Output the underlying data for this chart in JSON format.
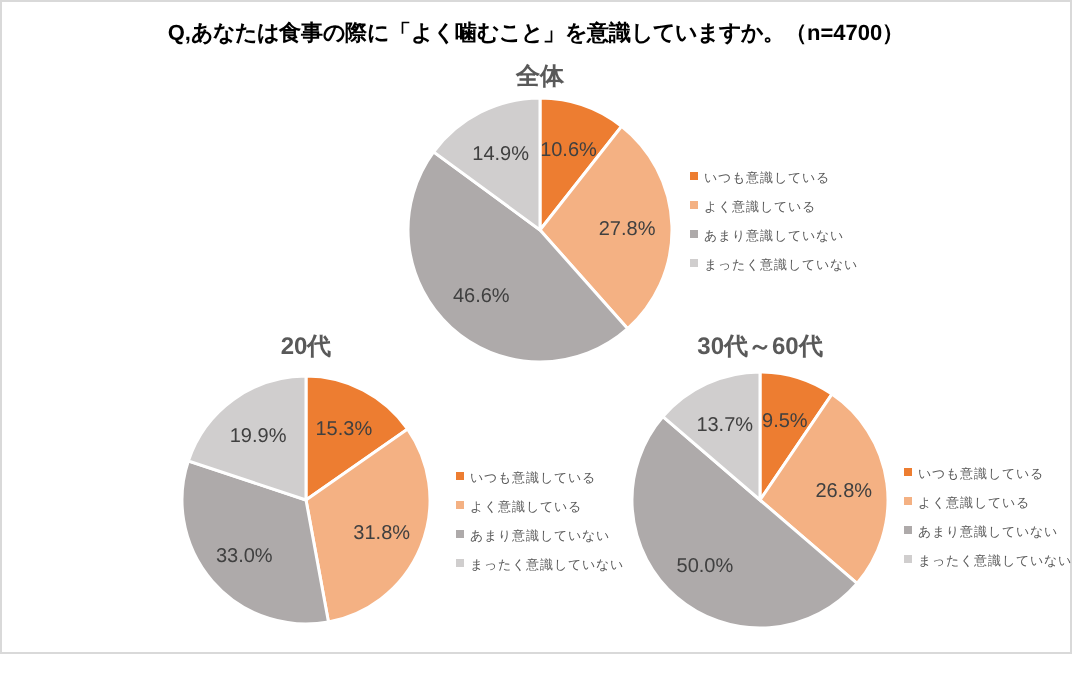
{
  "chart_data": [
    {
      "type": "pie",
      "title": "Q,あなたは食事の際に「よく噛むこと」を意識していますか。（n=4700）",
      "subtitle": "全体",
      "categories": [
        "いつも意識している",
        "よく意識している",
        "あまり意識していない",
        "まったく意識していない"
      ],
      "values": [
        10.6,
        27.8,
        46.6,
        14.9
      ],
      "value_labels": [
        "10.6%",
        "27.8%",
        "46.6%",
        "14.9%"
      ],
      "colors": [
        "#ed7d31",
        "#f4b183",
        "#aeaaaa",
        "#d0cece"
      ],
      "legend": "right"
    },
    {
      "type": "pie",
      "title": "20代",
      "categories": [
        "いつも意識している",
        "よく意識している",
        "あまり意識していない",
        "まったく意識していない"
      ],
      "values": [
        15.3,
        31.8,
        33.0,
        19.9
      ],
      "value_labels": [
        "15.3%",
        "31.8%",
        "33.0%",
        "19.9%"
      ],
      "colors": [
        "#ed7d31",
        "#f4b183",
        "#aeaaaa",
        "#d0cece"
      ],
      "legend": "right"
    },
    {
      "type": "pie",
      "title": "30代～60代",
      "categories": [
        "いつも意識している",
        "よく意識している",
        "あまり意識していない",
        "まったく意識していない"
      ],
      "values": [
        9.5,
        26.8,
        50.0,
        13.7
      ],
      "value_labels": [
        "9.5%",
        "26.8%",
        "50.0%",
        "13.7%"
      ],
      "colors": [
        "#ed7d31",
        "#f4b183",
        "#aeaaaa",
        "#d0cece"
      ],
      "legend": "right"
    }
  ]
}
